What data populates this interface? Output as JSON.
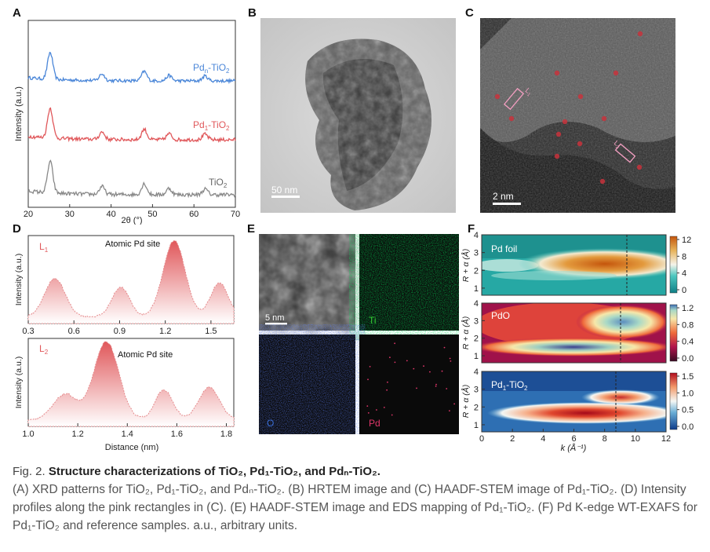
{
  "panels": {
    "A": {
      "label": "A",
      "ylabel": "Intensity (a.u.)",
      "xlabel": "2θ (°)",
      "xticks": [
        "20",
        "30",
        "40",
        "50",
        "60",
        "70"
      ],
      "series": [
        {
          "name_main": "Pd",
          "name_sub": "n",
          "name_tail": "-TiO",
          "name_sub2": "2",
          "color": "#4a86d8"
        },
        {
          "name_main": "Pd",
          "name_sub": "1",
          "name_tail": "-TiO",
          "name_sub2": "2",
          "color": "#e0575a"
        },
        {
          "name_main": "TiO",
          "name_sub": "2",
          "name_tail": "",
          "name_sub2": "",
          "color": "#888888"
        }
      ]
    },
    "B": {
      "label": "B",
      "scale": "50 nm"
    },
    "C": {
      "label": "C",
      "scale": "2 nm",
      "roi1": "L1",
      "roi2": "L2"
    },
    "D": {
      "label": "D",
      "top": {
        "line": "L",
        "line_sub": "1",
        "annot": "Atomic Pd site",
        "xticks": [
          "0.3",
          "0.6",
          "0.9",
          "1.2",
          "1.5"
        ]
      },
      "bottom": {
        "line": "L",
        "line_sub": "2",
        "annot": "Atomic Pd site",
        "xticks": [
          "1.0",
          "1.2",
          "1.4",
          "1.6",
          "1.8"
        ]
      },
      "ylabel": "Intensity (a.u.)",
      "xlabel": "Distance (nm)"
    },
    "E": {
      "label": "E",
      "scale": "5 nm",
      "ti": "Ti",
      "o": "O",
      "pd": "Pd"
    },
    "F": {
      "label": "F",
      "ylabel": "R + α (Å)",
      "xlabel": "k (Å⁻¹)",
      "xticks": [
        "0",
        "2",
        "4",
        "6",
        "8",
        "10",
        "12"
      ],
      "yticks": [
        "1",
        "2",
        "3",
        "4"
      ],
      "maps": [
        {
          "title": "Pd foil",
          "cbar": [
            "12",
            "8",
            "4",
            "0"
          ]
        },
        {
          "title": "PdO",
          "cbar": [
            "1.2",
            "0.8",
            "0.4",
            "0.0"
          ]
        },
        {
          "title_main": "Pd",
          "title_sub": "1",
          "title_tail": "-TiO",
          "title_sub2": "2",
          "cbar": [
            "1.5",
            "1.0",
            "0.5",
            "0.0"
          ]
        }
      ]
    }
  },
  "caption": {
    "fig": "Fig. 2.",
    "title": "Structure characterizations of TiO₂, Pd₁-TiO₂, and Pdₙ-TiO₂.",
    "body": "(A) XRD patterns for TiO₂, Pd₁-TiO₂, and Pdₙ-TiO₂. (B) HRTEM image and (C) HAADF-STEM image of Pd₁-TiO₂. (D) Intensity profiles along the pink rectangles in (C). (E) HAADF-STEM image and EDS mapping of Pd₁-TiO₂. (F) Pd K-edge WT-EXAFS for Pd₁-TiO₂ and reference samples. a.u., arbitrary units."
  }
}
